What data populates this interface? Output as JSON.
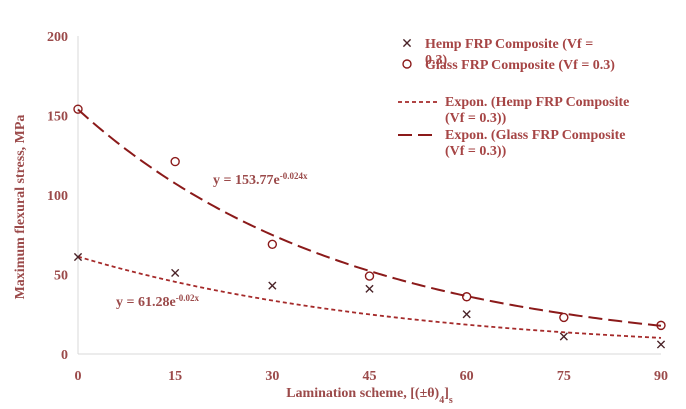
{
  "chart_data": {
    "type": "scatter",
    "xlabel": "Lamination scheme, [(±θ)",
    "xlabel_sub": "4",
    "xlabel_close": "]",
    "xlabel_sub2": "s",
    "ylabel": "Maximum flexural stress, MPa",
    "xlim": [
      0,
      90
    ],
    "ylim": [
      0,
      200
    ],
    "x_ticks": [
      "0",
      "15",
      "30",
      "45",
      "60",
      "75",
      "90"
    ],
    "y_ticks": [
      "0",
      "50",
      "100",
      "150",
      "200"
    ],
    "grid": false,
    "legend_position": "right",
    "series": [
      {
        "name": "Hemp FRP Composite (Vf = 0.3)",
        "legend_lines": [
          "Hemp FRP Composite (Vf =",
          "0.3)"
        ],
        "marker": "x",
        "color": "#4a2328",
        "x": [
          0,
          15,
          30,
          45,
          60,
          75,
          90
        ],
        "y": [
          61,
          51,
          43,
          41,
          25,
          11,
          6
        ]
      },
      {
        "name": "Glass FRP Composite (Vf = 0.3)",
        "legend_lines": [
          "Glass FRP Composite (Vf = 0.3)"
        ],
        "marker": "o",
        "color": "#8b1a1a",
        "x": [
          0,
          15,
          30,
          45,
          60,
          75,
          90
        ],
        "y": [
          154,
          121,
          69,
          49,
          36,
          23,
          18
        ]
      }
    ],
    "trendlines": [
      {
        "name": "Expon. (Hemp FRP Composite (Vf = 0.3))",
        "legend_lines": [
          "Expon. (Hemp FRP Composite",
          "(Vf = 0.3))"
        ],
        "style": "short-dash",
        "color": "#a52a2a",
        "a": 61.28,
        "b": -0.02,
        "equation_base": "y = 61.28e",
        "equation_exp": "-0.02x"
      },
      {
        "name": "Expon. (Glass FRP Composite (Vf = 0.3))",
        "legend_lines": [
          "Expon. (Glass FRP Composite",
          "(Vf = 0.3))"
        ],
        "style": "long-dash",
        "color": "#8b1a1a",
        "a": 153.77,
        "b": -0.024,
        "equation_base": "y = 153.77e",
        "equation_exp": "-0.024x"
      }
    ]
  },
  "colors": {
    "text": "#9b4a4a",
    "axis": "#d9d9d9",
    "legend_text": "#a64545"
  }
}
